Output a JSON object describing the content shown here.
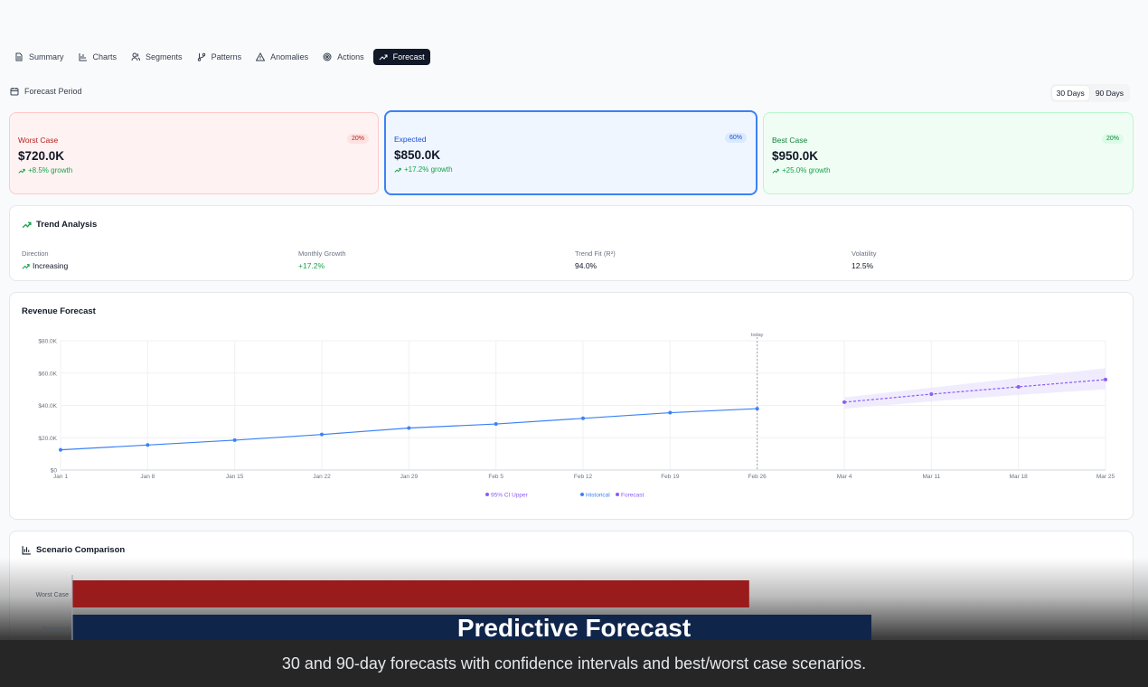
{
  "tabs": [
    {
      "label": "Summary",
      "icon": "file-text-icon"
    },
    {
      "label": "Charts",
      "icon": "bar-chart-icon"
    },
    {
      "label": "Segments",
      "icon": "users-icon"
    },
    {
      "label": "Patterns",
      "icon": "git-branch-icon"
    },
    {
      "label": "Anomalies",
      "icon": "alert-triangle-icon"
    },
    {
      "label": "Actions",
      "icon": "target-icon"
    },
    {
      "label": "Forecast",
      "icon": "trending-up-icon",
      "active": true
    }
  ],
  "period": {
    "label": "Forecast Period",
    "options": [
      "30 Days",
      "90 Days"
    ],
    "selected": "30 Days"
  },
  "scenarios": [
    {
      "name": "Worst Case",
      "badge": "20%",
      "value": "$720.0K",
      "growth": "+8.5% growth"
    },
    {
      "name": "Expected",
      "badge": "60%",
      "value": "$850.0K",
      "growth": "+17.2% growth"
    },
    {
      "name": "Best Case",
      "badge": "20%",
      "value": "$950.0K",
      "growth": "+25.0% growth"
    }
  ],
  "trend": {
    "title": "Trend Analysis",
    "metrics": [
      {
        "label": "Direction",
        "value": "Increasing"
      },
      {
        "label": "Monthly Growth",
        "value": "+17.2%"
      },
      {
        "label": "Trend Fit (R²)",
        "value": "94.0%"
      },
      {
        "label": "Volatility",
        "value": "12.5%"
      }
    ]
  },
  "chart_data": {
    "type": "line",
    "title": "Revenue Forecast",
    "x": [
      "Jan 1",
      "Jan 8",
      "Jan 15",
      "Jan 22",
      "Jan 29",
      "Feb 5",
      "Feb 12",
      "Feb 19",
      "Feb 26",
      "Mar 4",
      "Mar 11",
      "Mar 18",
      "Mar 25"
    ],
    "y_ticks": [
      "$0",
      "$20.0K",
      "$40.0K",
      "$60.0K",
      "$80.0K"
    ],
    "ylim": [
      0,
      80000
    ],
    "series": [
      {
        "name": "Historical",
        "color": "#3b82f6",
        "values": [
          12500,
          15500,
          18500,
          22000,
          26000,
          28500,
          32000,
          35500,
          38000,
          null,
          null,
          null,
          null
        ]
      },
      {
        "name": "Forecast",
        "color": "#8b5cf6",
        "values": [
          null,
          null,
          null,
          null,
          null,
          null,
          null,
          null,
          null,
          42000,
          47000,
          51500,
          56000
        ]
      },
      {
        "name": "95% CI Upper",
        "color": "#a78bfa",
        "values": [
          null,
          null,
          null,
          null,
          null,
          null,
          null,
          null,
          null,
          45000,
          51000,
          57000,
          63000
        ]
      }
    ],
    "ci_lower": [
      null,
      null,
      null,
      null,
      null,
      null,
      null,
      null,
      null,
      38000,
      42500,
      46500,
      50000
    ],
    "today_marker": {
      "label": "today",
      "at": "Feb 26"
    },
    "legend": [
      "95% CI Upper",
      "Historical",
      "Forecast"
    ],
    "grid": true
  },
  "comparison": {
    "title": "Scenario Comparison",
    "bars": [
      {
        "label": "Worst Case",
        "value": 720,
        "color": "#991b1b"
      },
      {
        "label": "Expected",
        "value": 850,
        "color": "#0f2549"
      }
    ],
    "max": 1000
  },
  "caption": {
    "title": "Predictive Forecast",
    "subtitle": "30 and 90-day forecasts with confidence intervals and best/worst case scenarios."
  }
}
